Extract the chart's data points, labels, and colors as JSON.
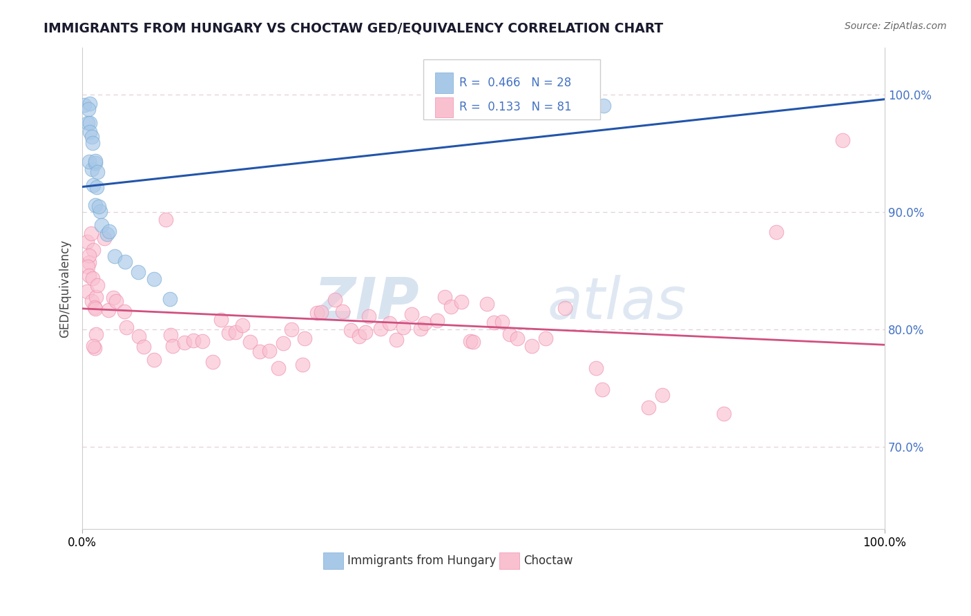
{
  "title": "IMMIGRANTS FROM HUNGARY VS CHOCTAW GED/EQUIVALENCY CORRELATION CHART",
  "source_text": "Source: ZipAtlas.com",
  "ylabel": "GED/Equivalency",
  "xlim": [
    0.0,
    1.0
  ],
  "ylim": [
    0.63,
    1.04
  ],
  "yticks": [
    0.7,
    0.8,
    0.9,
    1.0
  ],
  "ytick_labels": [
    "70.0%",
    "80.0%",
    "90.0%",
    "100.0%"
  ],
  "xtick_labels": [
    "0.0%",
    "100.0%"
  ],
  "blue_color": "#a8c8e8",
  "blue_edge_color": "#7aadd4",
  "pink_color": "#f9c0d0",
  "pink_edge_color": "#f090b0",
  "blue_line_color": "#2255aa",
  "pink_line_color": "#d05080",
  "legend_text1": "R =  0.466   N = 28",
  "legend_text2": "R =  0.133   N = 81",
  "watermark": "ZIPatlas",
  "watermark_color": "#c8d8ec",
  "label1": "Immigrants from Hungary",
  "label2": "Choctaw",
  "title_color": "#1a1a2e",
  "source_color": "#666666",
  "right_tick_color": "#4472c4",
  "grid_color": "#e0d0d8",
  "blue_x": [
    0.003,
    0.005,
    0.006,
    0.007,
    0.008,
    0.009,
    0.01,
    0.011,
    0.012,
    0.013,
    0.014,
    0.015,
    0.016,
    0.017,
    0.018,
    0.019,
    0.02,
    0.022,
    0.025,
    0.03,
    0.035,
    0.04,
    0.055,
    0.07,
    0.09,
    0.11,
    0.6,
    0.65
  ],
  "blue_y": [
    0.99,
    0.985,
    0.98,
    0.975,
    0.97,
    0.965,
    0.96,
    0.955,
    0.95,
    0.945,
    0.94,
    0.935,
    0.93,
    0.925,
    0.92,
    0.915,
    0.91,
    0.9,
    0.895,
    0.885,
    0.875,
    0.87,
    0.86,
    0.85,
    0.84,
    0.82,
    0.995,
    1.0
  ],
  "pink_x": [
    0.003,
    0.005,
    0.006,
    0.007,
    0.008,
    0.009,
    0.01,
    0.011,
    0.012,
    0.013,
    0.014,
    0.015,
    0.016,
    0.017,
    0.018,
    0.019,
    0.02,
    0.025,
    0.03,
    0.035,
    0.04,
    0.05,
    0.06,
    0.07,
    0.08,
    0.09,
    0.1,
    0.11,
    0.12,
    0.13,
    0.14,
    0.15,
    0.16,
    0.17,
    0.18,
    0.19,
    0.2,
    0.21,
    0.22,
    0.23,
    0.24,
    0.25,
    0.26,
    0.27,
    0.28,
    0.29,
    0.3,
    0.31,
    0.32,
    0.33,
    0.34,
    0.35,
    0.36,
    0.37,
    0.38,
    0.39,
    0.4,
    0.41,
    0.42,
    0.43,
    0.44,
    0.45,
    0.46,
    0.47,
    0.48,
    0.49,
    0.5,
    0.51,
    0.52,
    0.53,
    0.54,
    0.56,
    0.58,
    0.6,
    0.64,
    0.65,
    0.7,
    0.72,
    0.8,
    0.87,
    0.95
  ],
  "pink_y": [
    0.87,
    0.87,
    0.87,
    0.86,
    0.855,
    0.85,
    0.845,
    0.84,
    0.835,
    0.83,
    0.87,
    0.825,
    0.82,
    0.815,
    0.81,
    0.805,
    0.8,
    0.87,
    0.835,
    0.82,
    0.815,
    0.81,
    0.8,
    0.795,
    0.79,
    0.785,
    0.87,
    0.8,
    0.795,
    0.79,
    0.785,
    0.78,
    0.775,
    0.81,
    0.805,
    0.8,
    0.795,
    0.79,
    0.785,
    0.78,
    0.775,
    0.81,
    0.805,
    0.8,
    0.795,
    0.81,
    0.805,
    0.82,
    0.815,
    0.81,
    0.805,
    0.8,
    0.82,
    0.81,
    0.805,
    0.8,
    0.82,
    0.815,
    0.81,
    0.8,
    0.795,
    0.82,
    0.815,
    0.81,
    0.8,
    0.795,
    0.82,
    0.81,
    0.805,
    0.8,
    0.795,
    0.79,
    0.785,
    0.82,
    0.78,
    0.75,
    0.74,
    0.73,
    0.725,
    0.87,
    0.96
  ]
}
